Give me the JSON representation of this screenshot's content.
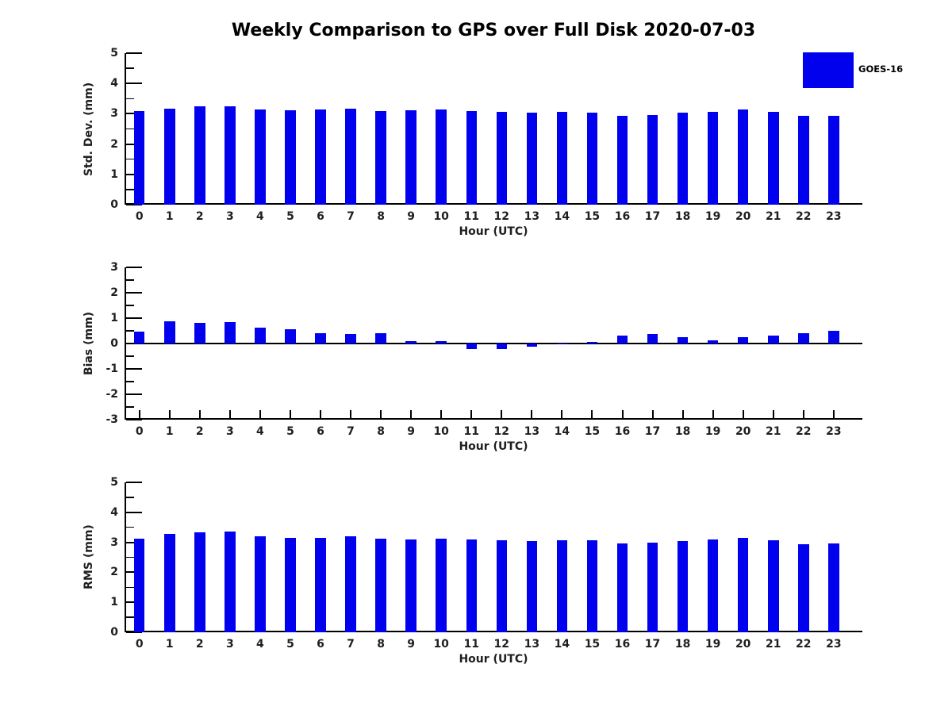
{
  "title": "Weekly Comparison to GPS over Full Disk 2020-07-03",
  "legend": {
    "label": "GOES-16",
    "swatch_color": "#0101ee"
  },
  "colors": {
    "bar": "#0101ee",
    "axis": "#000000",
    "tick_label": "#1f1f1f"
  },
  "chart_data": [
    {
      "type": "bar",
      "series_name": "GOES-16",
      "ylabel": "Std. Dev. (mm)",
      "xlabel": "Hour (UTC)",
      "categories": [
        "0",
        "1",
        "2",
        "3",
        "4",
        "5",
        "6",
        "7",
        "8",
        "9",
        "10",
        "11",
        "12",
        "13",
        "14",
        "15",
        "16",
        "17",
        "18",
        "19",
        "20",
        "21",
        "22",
        "23"
      ],
      "values": [
        3.08,
        3.18,
        3.25,
        3.24,
        3.14,
        3.12,
        3.14,
        3.17,
        3.08,
        3.11,
        3.14,
        3.09,
        3.06,
        3.03,
        3.05,
        3.04,
        2.93,
        2.96,
        3.03,
        3.06,
        3.14,
        3.06,
        2.92,
        2.94
      ],
      "ylim": [
        0,
        5
      ],
      "ytick_step": 1,
      "yminor_step": 0.5,
      "grid": false,
      "legend_position": "outside-top-right"
    },
    {
      "type": "bar",
      "series_name": "GOES-16",
      "ylabel": "Bias (mm)",
      "xlabel": "Hour (UTC)",
      "categories": [
        "0",
        "1",
        "2",
        "3",
        "4",
        "5",
        "6",
        "7",
        "8",
        "9",
        "10",
        "11",
        "12",
        "13",
        "14",
        "15",
        "16",
        "17",
        "18",
        "19",
        "20",
        "21",
        "22",
        "23"
      ],
      "values": [
        0.48,
        0.87,
        0.8,
        0.84,
        0.64,
        0.55,
        0.4,
        0.37,
        0.4,
        0.08,
        0.08,
        -0.21,
        -0.23,
        -0.13,
        -0.03,
        0.06,
        0.3,
        0.36,
        0.25,
        0.12,
        0.24,
        0.32,
        0.4,
        0.51
      ],
      "ylim": [
        -3,
        3
      ],
      "ytick_step": 1,
      "yminor_step": 0.5,
      "grid": false,
      "zero_line": true
    },
    {
      "type": "bar",
      "series_name": "GOES-16",
      "ylabel": "RMS (mm)",
      "xlabel": "Hour (UTC)",
      "categories": [
        "0",
        "1",
        "2",
        "3",
        "4",
        "5",
        "6",
        "7",
        "8",
        "9",
        "10",
        "11",
        "12",
        "13",
        "14",
        "15",
        "16",
        "17",
        "18",
        "19",
        "20",
        "21",
        "22",
        "23"
      ],
      "values": [
        3.12,
        3.29,
        3.34,
        3.36,
        3.21,
        3.16,
        3.16,
        3.19,
        3.12,
        3.1,
        3.13,
        3.1,
        3.07,
        3.04,
        3.06,
        3.07,
        2.95,
        2.98,
        3.03,
        3.09,
        3.14,
        3.08,
        2.94,
        2.97
      ],
      "ylim": [
        0,
        5
      ],
      "ytick_step": 1,
      "yminor_step": 0.5,
      "grid": false
    }
  ]
}
